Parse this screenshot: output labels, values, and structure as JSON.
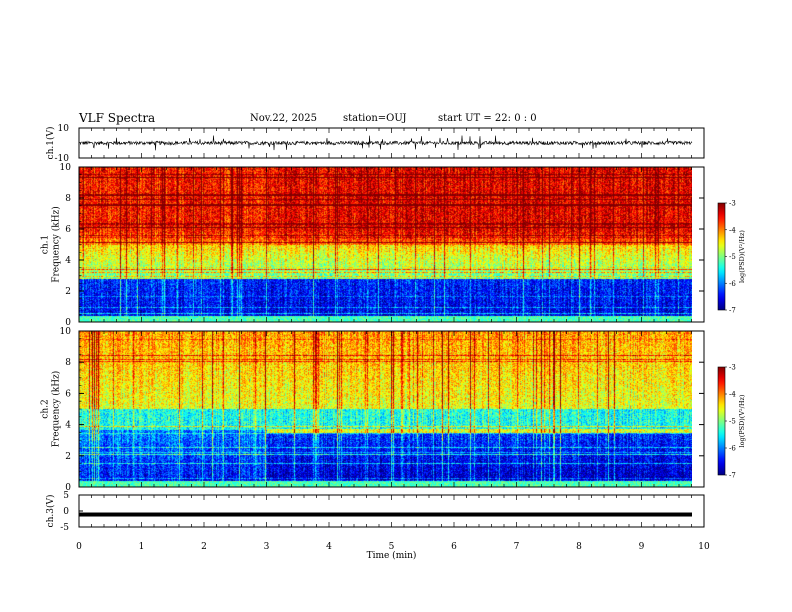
{
  "header": {
    "title": "VLF Spectra",
    "date": "Nov.22, 2025",
    "station": "station=OUJ",
    "start": "start  UT =   22: 0  : 0"
  },
  "colors": {
    "background": "#ffffff",
    "axis": "#000000",
    "waveform": "#000000"
  },
  "chart_data": [
    {
      "id": "ch1-waveform",
      "type": "line",
      "ylabel": "ch.1(V)",
      "ylim": [
        -10,
        10
      ],
      "yticks": [
        "10",
        "-10"
      ],
      "xlim": [
        0,
        9.8
      ],
      "baseline": 0,
      "noise_amplitude": 1.2,
      "spike_amplitude": 5
    },
    {
      "id": "ch1-spectrogram",
      "type": "heatmap",
      "ylabel": "ch.1\nFrequency  (kHz)",
      "ylim": [
        0,
        10
      ],
      "yticks": [
        "0",
        "2",
        "4",
        "6",
        "8",
        "10"
      ],
      "xlim": [
        0,
        9.8
      ],
      "colorbar": {
        "label": "log(PSD)(V²/Hz)",
        "range": [
          -7,
          -3
        ],
        "ticks": [
          "-3",
          "-4",
          "-5",
          "-6",
          "-7"
        ]
      },
      "features": {
        "high_band_level": -3.6,
        "mid_band_level": -5.1,
        "low_band_level": -6.6,
        "transition_khz": [
          2.8,
          5.0
        ],
        "trend_after_min": 3.0
      }
    },
    {
      "id": "ch2-spectrogram",
      "type": "heatmap",
      "ylabel": "ch.2\nFrequency  (kHz)",
      "ylim": [
        0,
        10
      ],
      "yticks": [
        "0",
        "2",
        "4",
        "6",
        "8",
        "10"
      ],
      "xlim": [
        0,
        9.8
      ],
      "colorbar": {
        "label": "log(PSD)(V²/Hz)",
        "range": [
          -7,
          -3
        ],
        "ticks": [
          "-3",
          "-4",
          "-5",
          "-6",
          "-7"
        ]
      },
      "features": {
        "high_band_level": -4.6,
        "mid_band_level": -5.4,
        "low_band_level": -6.5,
        "step_change_min": 3.0,
        "band_line_khz": 3.6
      }
    },
    {
      "id": "ch3-waveform",
      "type": "line",
      "ylabel": "ch.3(V)",
      "ylim": [
        -5,
        5
      ],
      "yticks": [
        "5",
        "0",
        "-5"
      ],
      "xlim": [
        0,
        9.8
      ],
      "baseline": -1.1
    }
  ],
  "xaxis": {
    "label": "Time  (min)",
    "range": [
      0,
      10
    ],
    "ticks": [
      "0",
      "1",
      "2",
      "3",
      "4",
      "5",
      "6",
      "7",
      "8",
      "9",
      "10"
    ]
  }
}
